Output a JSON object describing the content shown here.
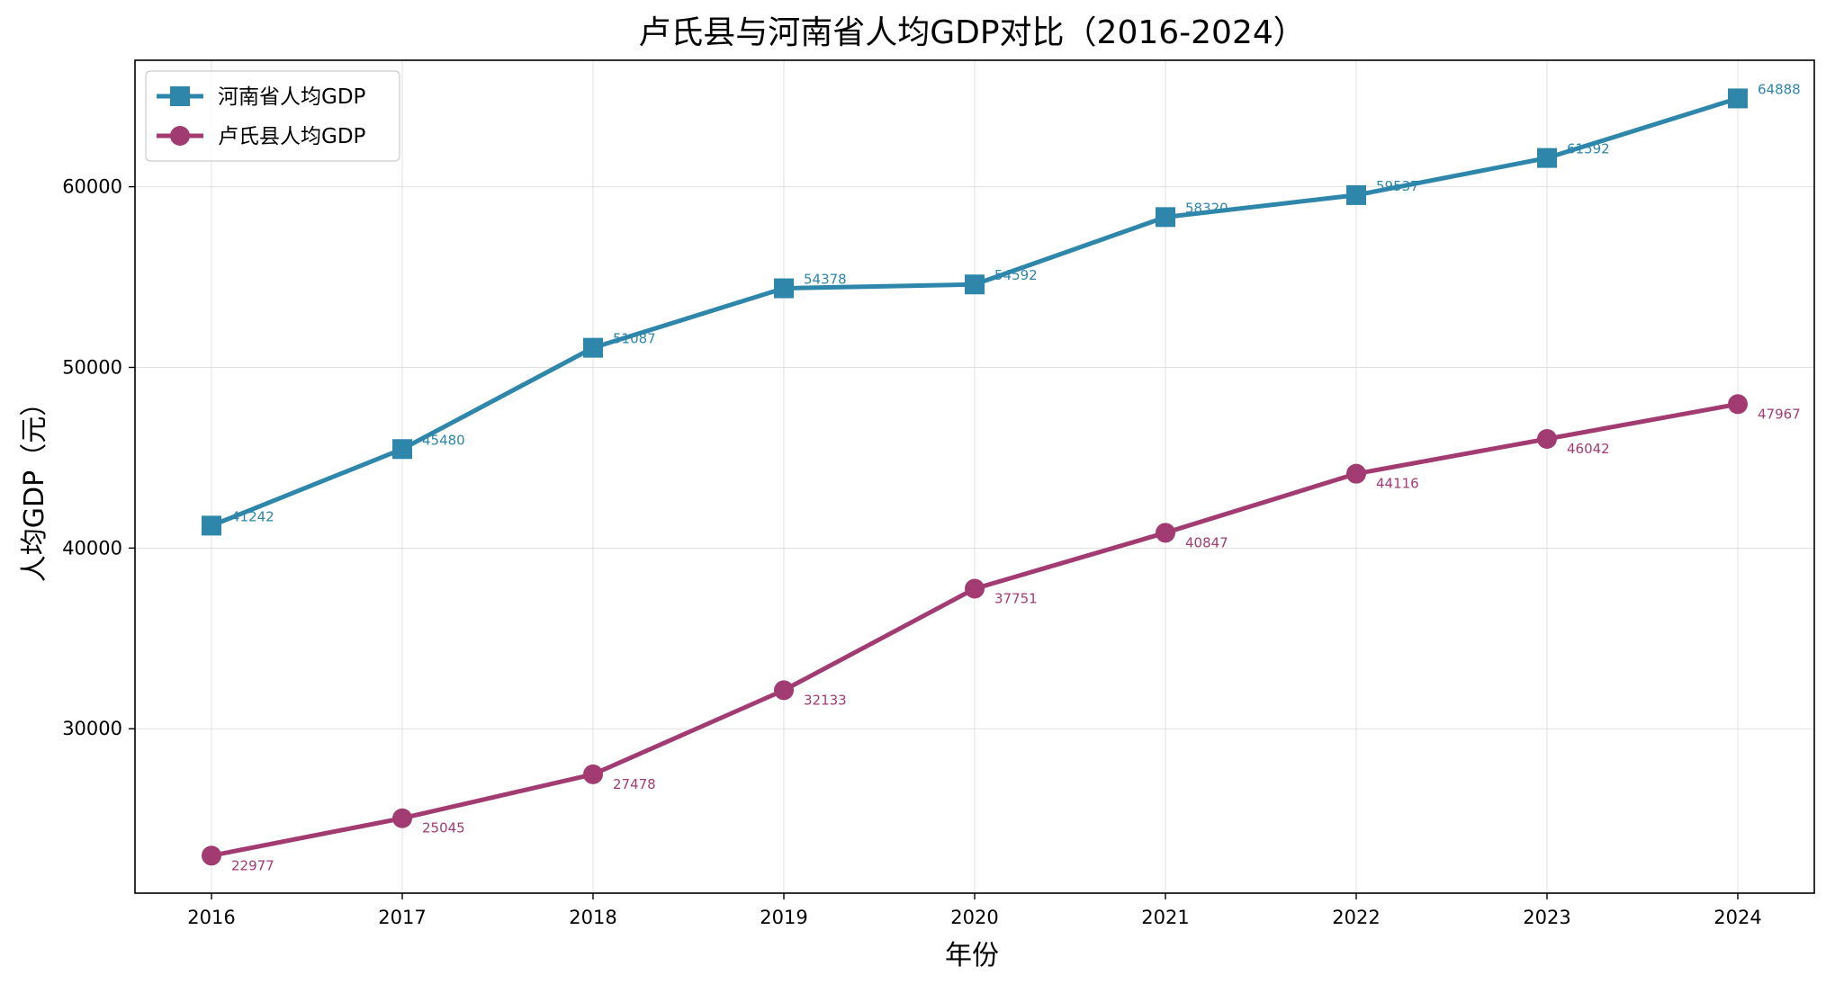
{
  "chart_data": {
    "type": "line",
    "title": "卢氏县与河南省人均GDP对比（2016-2024）",
    "xlabel": "年份",
    "ylabel": "人均GDP（元）",
    "categories": [
      "2016",
      "2017",
      "2018",
      "2019",
      "2020",
      "2021",
      "2022",
      "2023",
      "2024"
    ],
    "ylim": [
      20900,
      67000
    ],
    "yticks": [
      30000,
      40000,
      50000,
      60000
    ],
    "grid": true,
    "legend_position": "top-left",
    "series": [
      {
        "name": "河南省人均GDP",
        "marker": "square",
        "color": "#2e86ab",
        "values": [
          41242,
          45480,
          51087,
          54378,
          54592,
          58320,
          59537,
          61592,
          64888
        ],
        "labels": [
          "41242",
          "45480",
          "51087",
          "54378",
          "54592",
          "58320",
          "59537",
          "61592",
          "64888"
        ]
      },
      {
        "name": "卢氏县人均GDP",
        "marker": "circle",
        "color": "#a23b72",
        "values": [
          22977,
          25045,
          27478,
          32133,
          37751,
          40847,
          44116,
          46042,
          47967
        ],
        "labels": [
          "22977",
          "25045",
          "27478",
          "32133",
          "37751",
          "40847",
          "44116",
          "46042",
          "47967"
        ]
      }
    ]
  }
}
